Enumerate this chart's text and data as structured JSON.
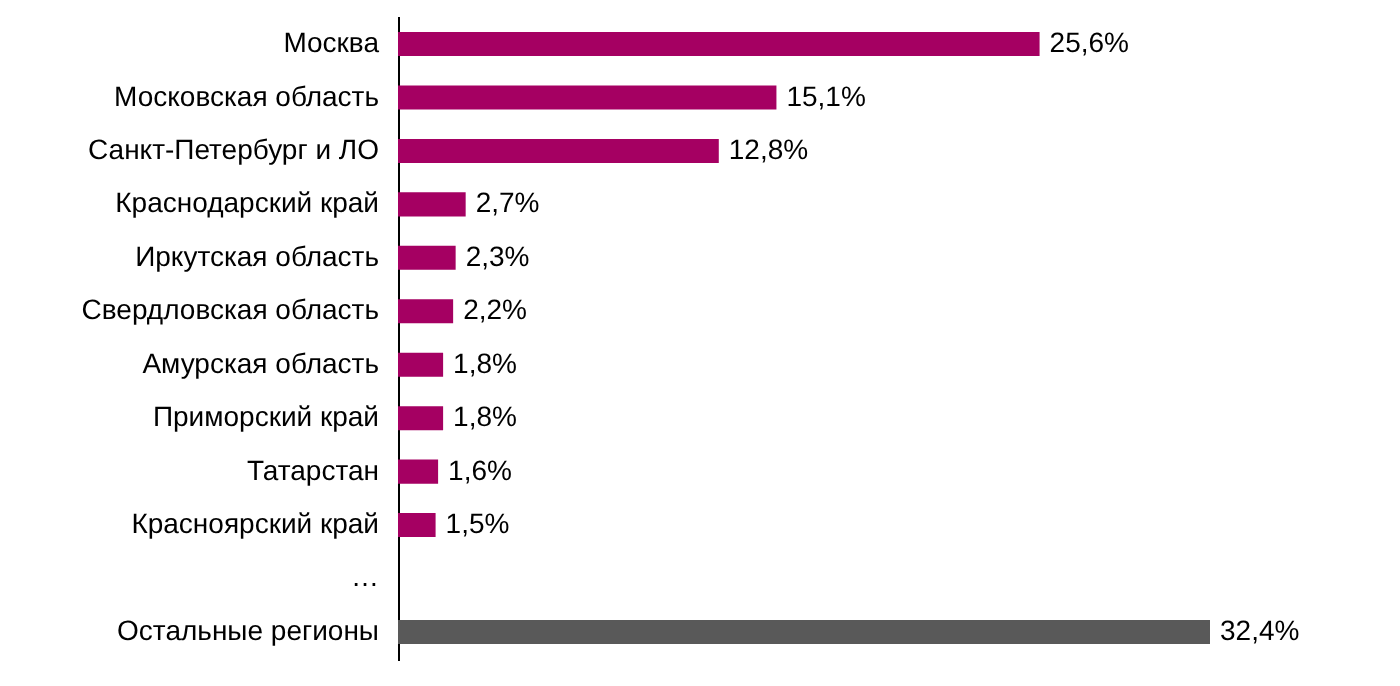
{
  "chart_data": {
    "type": "bar",
    "orientation": "horizontal",
    "categories": [
      "Москва",
      "Московская область",
      "Санкт-Петербург и ЛО",
      "Краснодарский край",
      "Иркутская область",
      "Свердловская область",
      "Амурская область",
      "Приморский край",
      "Татарстан",
      "Красноярский край",
      "…",
      "Остальные регионы"
    ],
    "values": [
      25.6,
      15.1,
      12.8,
      2.7,
      2.3,
      2.2,
      1.8,
      1.8,
      1.6,
      1.5,
      null,
      32.4
    ],
    "colors": [
      "#a50062",
      "#a50062",
      "#a50062",
      "#a50062",
      "#a50062",
      "#a50062",
      "#a50062",
      "#a50062",
      "#a50062",
      "#a50062",
      "#a50062",
      "#595959"
    ],
    "value_labels": [
      "25,6%",
      "15,1%",
      "12,8%",
      "2,7%",
      "2,3%",
      "2,2%",
      "1,8%",
      "1,8%",
      "1,6%",
      "1,5%",
      null,
      "32,4%"
    ],
    "tick_labels": "y"
  }
}
